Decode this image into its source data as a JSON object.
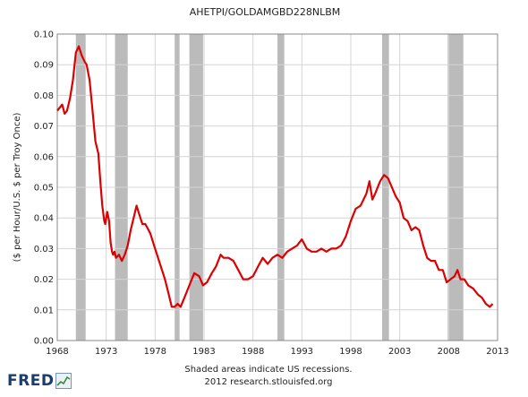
{
  "chart_data": {
    "type": "line",
    "title": "AHETPI/GOLDAMGBD228NLBM",
    "ylabel": "($ per Hour/U.S. $ per Troy Once)",
    "xlabel": "",
    "xlim": [
      1968,
      2013
    ],
    "ylim": [
      0,
      0.1
    ],
    "x_ticks": [
      "1968",
      "1973",
      "1978",
      "1983",
      "1988",
      "1993",
      "1998",
      "2003",
      "2008",
      "2013"
    ],
    "y_ticks": [
      "0.00",
      "0.01",
      "0.02",
      "0.03",
      "0.04",
      "0.05",
      "0.06",
      "0.07",
      "0.08",
      "0.09",
      "0.10"
    ],
    "grid": true,
    "line_color": "#dd0000",
    "recession_color": "#bbbbbb",
    "recessions": [
      [
        1969.9,
        1970.9
      ],
      [
        1973.9,
        1975.2
      ],
      [
        1980.0,
        1980.5
      ],
      [
        1981.5,
        1982.9
      ],
      [
        1990.5,
        1991.2
      ],
      [
        2001.2,
        2001.9
      ],
      [
        2007.9,
        2009.5
      ]
    ],
    "x": [
      1968.0,
      1968.5,
      1968.75,
      1969.0,
      1969.3,
      1969.6,
      1969.9,
      1970.2,
      1970.5,
      1970.8,
      1971.0,
      1971.3,
      1971.6,
      1971.9,
      1972.2,
      1972.4,
      1972.6,
      1972.8,
      1972.9,
      1973.1,
      1973.3,
      1973.45,
      1973.6,
      1973.7,
      1973.85,
      1974.0,
      1974.3,
      1974.6,
      1974.9,
      1975.2,
      1975.5,
      1975.8,
      1976.1,
      1976.4,
      1976.7,
      1977.0,
      1977.5,
      1978.0,
      1978.5,
      1979.0,
      1979.4,
      1979.7,
      1980.0,
      1980.3,
      1980.6,
      1981.0,
      1981.5,
      1982.0,
      1982.5,
      1982.9,
      1983.3,
      1983.8,
      1984.2,
      1984.7,
      1985.0,
      1985.5,
      1986.0,
      1986.5,
      1987.0,
      1987.5,
      1988.0,
      1988.5,
      1989.0,
      1989.5,
      1990.0,
      1990.5,
      1991.0,
      1991.5,
      1992.0,
      1992.5,
      1993.0,
      1993.5,
      1994.0,
      1994.5,
      1995.0,
      1995.5,
      1996.0,
      1996.5,
      1997.0,
      1997.5,
      1998.0,
      1998.5,
      1999.0,
      1999.3,
      1999.6,
      1999.9,
      2000.2,
      2000.5,
      2001.0,
      2001.4,
      2001.8,
      2002.2,
      2002.6,
      2003.0,
      2003.4,
      2003.8,
      2004.2,
      2004.6,
      2005.0,
      2005.4,
      2005.8,
      2006.2,
      2006.6,
      2007.0,
      2007.4,
      2007.8,
      2008.2,
      2008.6,
      2008.9,
      2009.2,
      2009.6,
      2010.0,
      2010.5,
      2011.0,
      2011.4,
      2011.8,
      2012.2,
      2012.5
    ],
    "values": [
      0.075,
      0.077,
      0.074,
      0.075,
      0.079,
      0.085,
      0.094,
      0.096,
      0.093,
      0.091,
      0.09,
      0.085,
      0.075,
      0.065,
      0.061,
      0.052,
      0.044,
      0.039,
      0.038,
      0.042,
      0.039,
      0.032,
      0.029,
      0.028,
      0.029,
      0.027,
      0.028,
      0.026,
      0.028,
      0.031,
      0.036,
      0.04,
      0.044,
      0.041,
      0.038,
      0.038,
      0.035,
      0.03,
      0.025,
      0.02,
      0.015,
      0.011,
      0.011,
      0.012,
      0.011,
      0.014,
      0.018,
      0.022,
      0.021,
      0.018,
      0.019,
      0.022,
      0.024,
      0.028,
      0.027,
      0.027,
      0.026,
      0.023,
      0.02,
      0.02,
      0.021,
      0.024,
      0.027,
      0.025,
      0.027,
      0.028,
      0.027,
      0.029,
      0.03,
      0.031,
      0.033,
      0.03,
      0.029,
      0.029,
      0.03,
      0.029,
      0.03,
      0.03,
      0.031,
      0.034,
      0.039,
      0.043,
      0.044,
      0.046,
      0.048,
      0.052,
      0.046,
      0.048,
      0.052,
      0.054,
      0.053,
      0.05,
      0.047,
      0.045,
      0.04,
      0.039,
      0.036,
      0.037,
      0.036,
      0.031,
      0.027,
      0.026,
      0.026,
      0.023,
      0.023,
      0.019,
      0.02,
      0.021,
      0.023,
      0.02,
      0.02,
      0.018,
      0.017,
      0.015,
      0.014,
      0.012,
      0.011,
      0.012
    ]
  },
  "footer": {
    "note": "Shaded areas indicate US recessions.",
    "source": "2012 research.stlouisfed.org"
  },
  "logo": {
    "brand": "FRED",
    "icon": "fred-chart-icon"
  }
}
